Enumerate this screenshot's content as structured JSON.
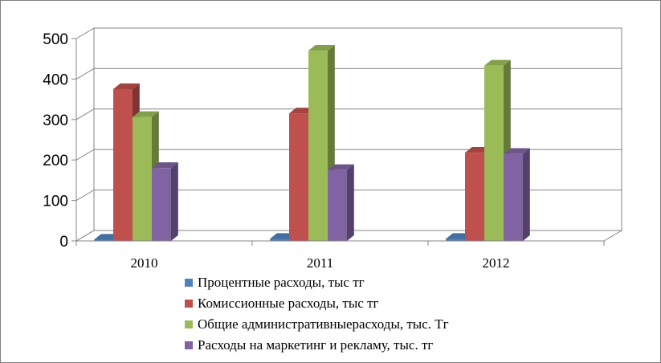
{
  "chart_data": {
    "type": "bar",
    "categories": [
      "2010",
      "2011",
      "2012"
    ],
    "yticks": [
      "0",
      "100",
      "200",
      "300",
      "400",
      "500"
    ],
    "ylim": [
      0,
      500
    ],
    "grid": true,
    "legend_position": "bottom",
    "series": [
      {
        "name": "Процентные расходы, тыс тг",
        "color": "#4f81bd",
        "values": [
          3,
          5,
          5
        ]
      },
      {
        "name": "Комиссионные расходы, тыс тг",
        "color": "#c0504d",
        "values": [
          375,
          315,
          218
        ]
      },
      {
        "name": "Общие административныерасходы,  тыс. Тг",
        "color": "#9bbb59",
        "values": [
          306,
          470,
          433
        ]
      },
      {
        "name": "Расходы на маркетинг  и рекламу,  тыс. тг",
        "color": "#8064a2",
        "values": [
          180,
          175,
          215
        ]
      }
    ]
  }
}
